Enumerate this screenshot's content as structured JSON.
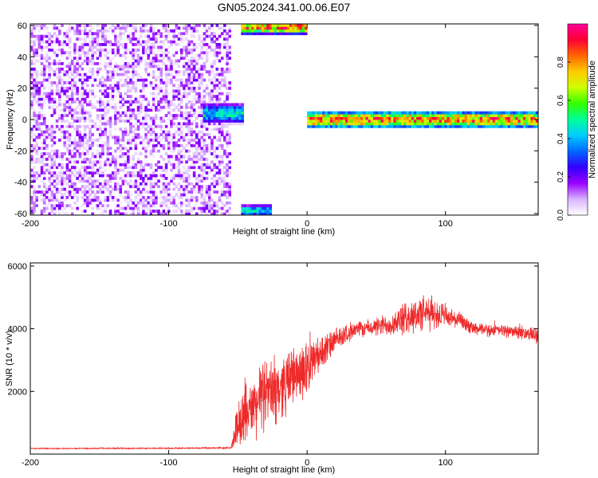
{
  "figure": {
    "title": "GN05.2024.341.00.06.E07"
  },
  "chart_data": [
    {
      "type": "heatmap",
      "title": "GN05.2024.341.00.06.E07",
      "xlabel": "Height of straight line (km)",
      "ylabel": "Frequency (Hz)",
      "xlim": [
        -200,
        167
      ],
      "ylim": [
        -61,
        61
      ],
      "x_ticks": [
        -200,
        -100,
        0,
        100
      ],
      "y_ticks": [
        60,
        40,
        20,
        0,
        -20,
        -40,
        -60
      ],
      "colorbar": {
        "label": "Normalized spectral amplitude",
        "range": [
          0,
          1
        ],
        "ticks": [
          0.0,
          0.2,
          0.4,
          0.6,
          0.8
        ],
        "colors": [
          "#ffffff",
          "#d9b3ff",
          "#9900ff",
          "#3300ff",
          "#0066ff",
          "#00ccff",
          "#00ff99",
          "#33ff00",
          "#ccff00",
          "#ffcc00",
          "#ff6600",
          "#ff0033",
          "#ff0099"
        ]
      },
      "regions": [
        {
          "name": "noise",
          "x_range": [
            -200,
            -55
          ],
          "f_range": [
            -61,
            61
          ],
          "amplitude_range": [
            0.0,
            0.2
          ]
        },
        {
          "name": "band",
          "x_range": [
            -75,
            -45
          ],
          "f_center": 4,
          "f_halfwidth": 7,
          "peak_amplitude": 0.55
        },
        {
          "name": "band",
          "x_range": [
            -47,
            0
          ],
          "f_center": 59,
          "f_halfwidth": 5,
          "peak_amplitude": 1.0
        },
        {
          "name": "band",
          "x_range": [
            -47,
            -25
          ],
          "f_center": -58,
          "f_halfwidth": 4,
          "peak_amplitude": 0.55
        },
        {
          "name": "band",
          "x_range": [
            0,
            167
          ],
          "f_center": 0,
          "f_halfwidth": 6,
          "peak_amplitude": 1.0
        }
      ]
    },
    {
      "type": "line",
      "xlabel": "Height of straight line (km)",
      "ylabel": "SNR (10 * v/v)",
      "xlim": [
        -200,
        167
      ],
      "ylim": [
        0,
        6100
      ],
      "x_ticks": [
        -200,
        -100,
        0,
        100
      ],
      "y_ticks": [
        2000,
        4000,
        6000
      ],
      "color": "#ee2a2a",
      "series": [
        {
          "x": [
            -200,
            -160,
            -120,
            -80,
            -55,
            -50,
            -40,
            -30,
            -20,
            -10,
            0,
            10,
            20,
            30,
            40,
            50,
            60,
            70,
            80,
            90,
            100,
            110,
            120,
            130,
            140,
            150,
            160,
            167
          ],
          "y": [
            180,
            180,
            185,
            190,
            200,
            900,
            1500,
            1900,
            2100,
            2500,
            2800,
            3200,
            3600,
            3900,
            4000,
            4050,
            4150,
            4300,
            4450,
            4500,
            4400,
            4250,
            4000,
            3950,
            3950,
            3900,
            3850,
            3800
          ],
          "noise_amplitude": [
            20,
            20,
            25,
            25,
            30,
            900,
            1200,
            1300,
            1200,
            1100,
            1000,
            700,
            450,
            350,
            300,
            350,
            450,
            600,
            700,
            650,
            450,
            300,
            250,
            230,
            230,
            230,
            250,
            300
          ]
        }
      ]
    }
  ]
}
